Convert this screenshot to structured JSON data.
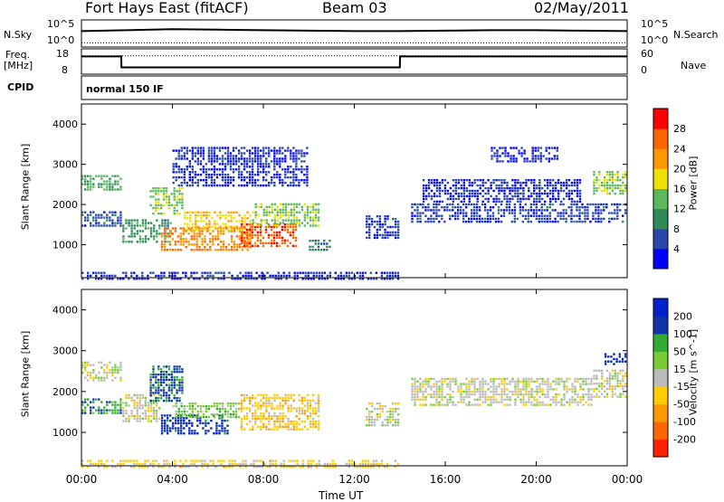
{
  "header": {
    "station": "Fort Hays East (fitACF)",
    "beam": "Beam 03",
    "date": "02/May/2011"
  },
  "noise_panel": {
    "left_label": "N.Sky",
    "right_label": "N.Search",
    "tick_top": "10^5",
    "tick_bottom": "10^0",
    "tick_top_right": "10^5",
    "tick_bottom_right": "10^0"
  },
  "freq_panel": {
    "left_label_1": "Freq.",
    "left_label_2": "[MHz]",
    "right_label": "Nave",
    "left_ticks": [
      "18",
      "8"
    ],
    "right_ticks": [
      "60",
      "0"
    ]
  },
  "cpid": {
    "label": "CPID",
    "value": "normal 150 IF"
  },
  "colors": {
    "power_scale": [
      "#0000ff",
      "#2a48a8",
      "#2e8b57",
      "#5cb85c",
      "#f0e000",
      "#ff9900",
      "#ff6600",
      "#ff0000"
    ],
    "velocity_scale": [
      "#0022cc",
      "#1133aa",
      "#33aa33",
      "#77cc33",
      "#bbbbbb",
      "#ffcc00",
      "#ff9900",
      "#ff6600",
      "#ff2200"
    ]
  },
  "chart_data": [
    {
      "type": "line",
      "name": "noise-sky-search",
      "x_range_hours": [
        0,
        24
      ],
      "series": [
        {
          "name": "N.Sky",
          "x": [
            0,
            2,
            4,
            6,
            8,
            10,
            12,
            14,
            16,
            18,
            20,
            22,
            24
          ],
          "values": [
            3.0,
            3.2,
            3.4,
            3.3,
            3.2,
            3.1,
            3.0,
            3.0,
            3.1,
            3.2,
            3.2,
            3.1,
            3.0
          ]
        },
        {
          "name": "N.Search",
          "x": [
            0,
            4,
            8,
            12,
            16,
            20,
            24
          ],
          "values": [
            0.5,
            0.5,
            0.5,
            0.5,
            0.5,
            0.5,
            0.5
          ]
        }
      ]
    },
    {
      "type": "line",
      "name": "frequency-nave",
      "x_range_hours": [
        0,
        24
      ],
      "series": [
        {
          "name": "Freq.",
          "x": [
            0,
            1.75,
            1.76,
            14.0,
            14.01,
            24
          ],
          "values": [
            16,
            16,
            10.5,
            10.5,
            16,
            16
          ]
        },
        {
          "name": "Nave",
          "x": [
            0,
            24
          ],
          "values": [
            50,
            50
          ]
        }
      ]
    },
    {
      "type": "heatmap",
      "name": "power",
      "xlabel": "",
      "ylabel": "Slant Range [km]",
      "x_ticks": [
        "00:00",
        "04:00",
        "08:00",
        "12:00",
        "16:00",
        "20:00",
        "00:00"
      ],
      "xlim_hours": [
        0,
        24
      ],
      "ylim": [
        180,
        4500
      ],
      "y_ticks": [
        1000,
        2000,
        3000,
        4000
      ],
      "colorbar_label": "Power [dB]",
      "colorbar_ticks": [
        "4",
        "8",
        "12",
        "16",
        "20",
        "24",
        "28"
      ],
      "colorbar_range": [
        0,
        30
      ],
      "regions": [
        {
          "t0": 0.0,
          "t1": 1.8,
          "r0": 2400,
          "r1": 2800,
          "value": 12
        },
        {
          "t0": 0.0,
          "t1": 1.8,
          "r0": 1500,
          "r1": 1900,
          "value": 6
        },
        {
          "t0": 1.8,
          "t1": 4.0,
          "r0": 1100,
          "r1": 1700,
          "value": 10
        },
        {
          "t0": 3.0,
          "t1": 4.5,
          "r0": 1800,
          "r1": 2500,
          "value": 14
        },
        {
          "t0": 3.5,
          "t1": 7.5,
          "r0": 900,
          "r1": 1500,
          "value": 22
        },
        {
          "t0": 4.5,
          "t1": 7.5,
          "r0": 1400,
          "r1": 1900,
          "value": 18
        },
        {
          "t0": 7.0,
          "t1": 9.5,
          "r0": 1000,
          "r1": 1600,
          "value": 25
        },
        {
          "t0": 7.5,
          "t1": 10.5,
          "r0": 1500,
          "r1": 2100,
          "value": 14
        },
        {
          "t0": 10.0,
          "t1": 11.0,
          "r0": 900,
          "r1": 1200,
          "value": 8
        },
        {
          "t0": 12.5,
          "t1": 14.0,
          "r0": 1200,
          "r1": 1800,
          "value": 5
        },
        {
          "t0": 14.5,
          "t1": 24.0,
          "r0": 1600,
          "r1": 2100,
          "value": 5
        },
        {
          "t0": 15.0,
          "t1": 22.0,
          "r0": 2100,
          "r1": 2700,
          "value": 4
        },
        {
          "t0": 18.0,
          "t1": 21.0,
          "r0": 3100,
          "r1": 3500,
          "value": 4
        },
        {
          "t0": 22.5,
          "t1": 24.0,
          "r0": 2300,
          "r1": 2900,
          "value": 14
        },
        {
          "t0": 0.0,
          "t1": 14.0,
          "r0": 180,
          "r1": 400,
          "value": 4
        },
        {
          "t0": 4.0,
          "t1": 10.0,
          "r0": 2500,
          "r1": 3500,
          "value": 4
        }
      ]
    },
    {
      "type": "heatmap",
      "name": "velocity",
      "xlabel": "Time UT",
      "ylabel": "Slant Range [km]",
      "x_ticks": [
        "00:00",
        "04:00",
        "08:00",
        "12:00",
        "16:00",
        "20:00",
        "00:00"
      ],
      "xlim_hours": [
        0,
        24
      ],
      "ylim": [
        180,
        4500
      ],
      "y_ticks": [
        1000,
        2000,
        3000,
        4000
      ],
      "colorbar_label": "Velocity [m s^-1]",
      "colorbar_ticks": [
        "200",
        "100",
        "50",
        "15",
        "-15",
        "-50",
        "-100",
        "-200"
      ],
      "colorbar_range": [
        -250,
        250
      ],
      "regions": [
        {
          "t0": 0.0,
          "t1": 1.8,
          "r0": 2300,
          "r1": 2800,
          "value": 0
        },
        {
          "t0": 0.0,
          "t1": 1.8,
          "r0": 1500,
          "r1": 1900,
          "value": 120
        },
        {
          "t0": 1.8,
          "t1": 3.5,
          "r0": 1300,
          "r1": 2000,
          "value": 0
        },
        {
          "t0": 3.0,
          "t1": 4.5,
          "r0": 1800,
          "r1": 2700,
          "value": 150
        },
        {
          "t0": 3.5,
          "t1": 6.5,
          "r0": 1000,
          "r1": 1500,
          "value": 180
        },
        {
          "t0": 4.0,
          "t1": 7.0,
          "r0": 1400,
          "r1": 1800,
          "value": 60
        },
        {
          "t0": 7.0,
          "t1": 10.5,
          "r0": 1100,
          "r1": 2000,
          "value": -60
        },
        {
          "t0": 12.5,
          "t1": 14.0,
          "r0": 1200,
          "r1": 1800,
          "value": 0
        },
        {
          "t0": 14.5,
          "t1": 22.5,
          "r0": 1700,
          "r1": 2400,
          "value": 0
        },
        {
          "t0": 22.5,
          "t1": 24.0,
          "r0": 1900,
          "r1": 2600,
          "value": 0
        },
        {
          "t0": 23.0,
          "t1": 24.0,
          "r0": 2700,
          "r1": 3000,
          "value": 200
        },
        {
          "t0": 0.0,
          "t1": 14.0,
          "r0": 180,
          "r1": 400,
          "value": -40
        }
      ]
    }
  ]
}
